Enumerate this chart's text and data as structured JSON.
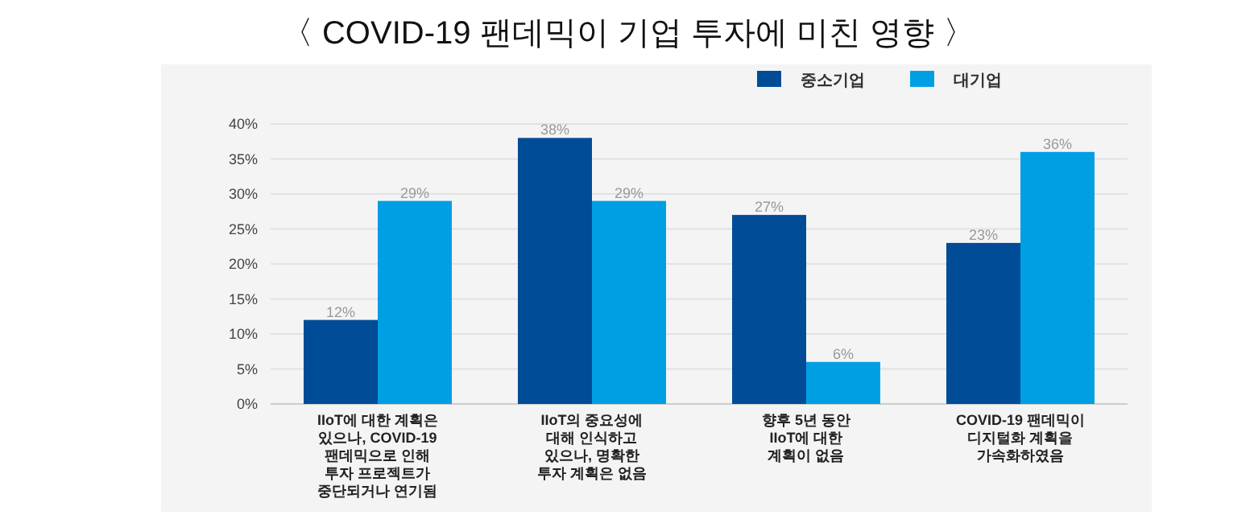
{
  "chart_data": {
    "type": "bar",
    "title": "〈 COVID-19 팬데믹이 기업 투자에 미친 영향 〉",
    "categories": [
      "IIoT에 대한 계획은\n있으나, COVID-19\n팬데믹으로 인해\n투자 프로젝트가\n중단되거나 연기됨",
      "IIoT의 중요성에\n대해 인식하고\n있으나, 명확한\n투자 계획은 없음",
      "향후 5년 동안\nIIoT에 대한\n계획이 없음",
      "COVID-19 팬데믹이\n디지털화 계획을\n가속화하였음"
    ],
    "series": [
      {
        "name": "중소기업",
        "color": "#004c97",
        "values": [
          12,
          38,
          27,
          23
        ],
        "value_labels": [
          "12%",
          "38%",
          "27%",
          "23%"
        ]
      },
      {
        "name": "대기업",
        "color": "#009fe3",
        "values": [
          29,
          29,
          6,
          36
        ],
        "value_labels": [
          "29%",
          "29%",
          "6%",
          "36%"
        ]
      }
    ],
    "ylim": [
      0,
      40
    ],
    "yticks": [
      {
        "value": 0,
        "label": "0%"
      },
      {
        "value": 5,
        "label": "5%"
      },
      {
        "value": 10,
        "label": "10%"
      },
      {
        "value": 15,
        "label": "15%"
      },
      {
        "value": 20,
        "label": "20%"
      },
      {
        "value": 25,
        "label": "25%"
      },
      {
        "value": 30,
        "label": "30%"
      },
      {
        "value": 35,
        "label": "35%"
      },
      {
        "value": 40,
        "label": "40%"
      }
    ],
    "grid": "y",
    "legend": "top right"
  }
}
